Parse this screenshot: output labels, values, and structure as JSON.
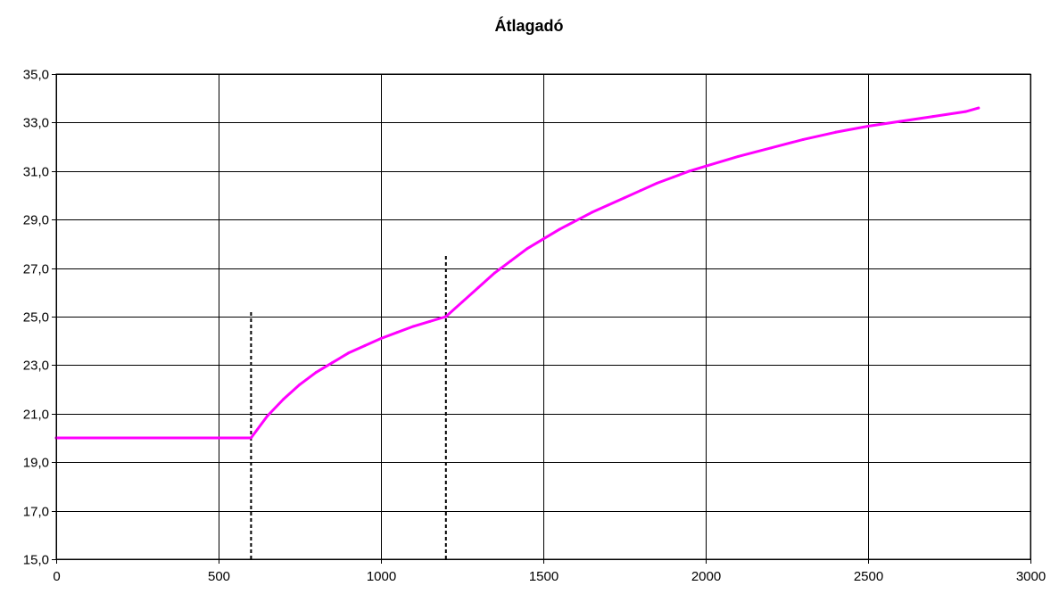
{
  "chart_data": {
    "type": "line",
    "title": "Átlagadó",
    "xlabel": "",
    "ylabel": "",
    "xlim": [
      0,
      3000
    ],
    "ylim": [
      15.0,
      35.0
    ],
    "x_ticks": [
      0,
      500,
      1000,
      1500,
      2000,
      2500,
      3000
    ],
    "x_tick_labels": [
      "0",
      "500",
      "1000",
      "1500",
      "2000",
      "2500",
      "3000"
    ],
    "y_ticks": [
      15,
      17,
      19,
      21,
      23,
      25,
      27,
      29,
      31,
      33,
      35
    ],
    "y_tick_labels": [
      "15,0",
      "17,0",
      "19,0",
      "21,0",
      "23,0",
      "25,0",
      "27,0",
      "29,0",
      "31,0",
      "33,0",
      "35,0"
    ],
    "grid": true,
    "legend": false,
    "series": [
      {
        "color": "#FF00FF",
        "x": [
          0,
          600,
          650,
          700,
          750,
          800,
          850,
          900,
          950,
          1000,
          1050,
          1100,
          1150,
          1200,
          1250,
          1300,
          1350,
          1400,
          1450,
          1500,
          1550,
          1600,
          1650,
          1700,
          1750,
          1800,
          1850,
          1900,
          1950,
          2000,
          2100,
          2200,
          2300,
          2400,
          2500,
          2600,
          2700,
          2800,
          2840
        ],
        "y": [
          20.0,
          20.0,
          20.9,
          21.6,
          22.2,
          22.7,
          23.1,
          23.5,
          23.8,
          24.1,
          24.35,
          24.6,
          24.8,
          25.0,
          25.6,
          26.2,
          26.8,
          27.3,
          27.8,
          28.2,
          28.6,
          28.95,
          29.3,
          29.6,
          29.9,
          30.2,
          30.5,
          30.75,
          31.0,
          31.2,
          31.6,
          31.95,
          32.3,
          32.6,
          32.85,
          33.05,
          33.25,
          33.45,
          33.6
        ]
      }
    ],
    "annotations": [
      {
        "type": "vline",
        "x": 600,
        "y_from": 15.0,
        "y_to": 25.2,
        "style": "dashed",
        "color": "#000000"
      },
      {
        "type": "vline",
        "x": 1200,
        "y_from": 15.0,
        "y_to": 27.6,
        "style": "dashed",
        "color": "#000000"
      }
    ]
  }
}
